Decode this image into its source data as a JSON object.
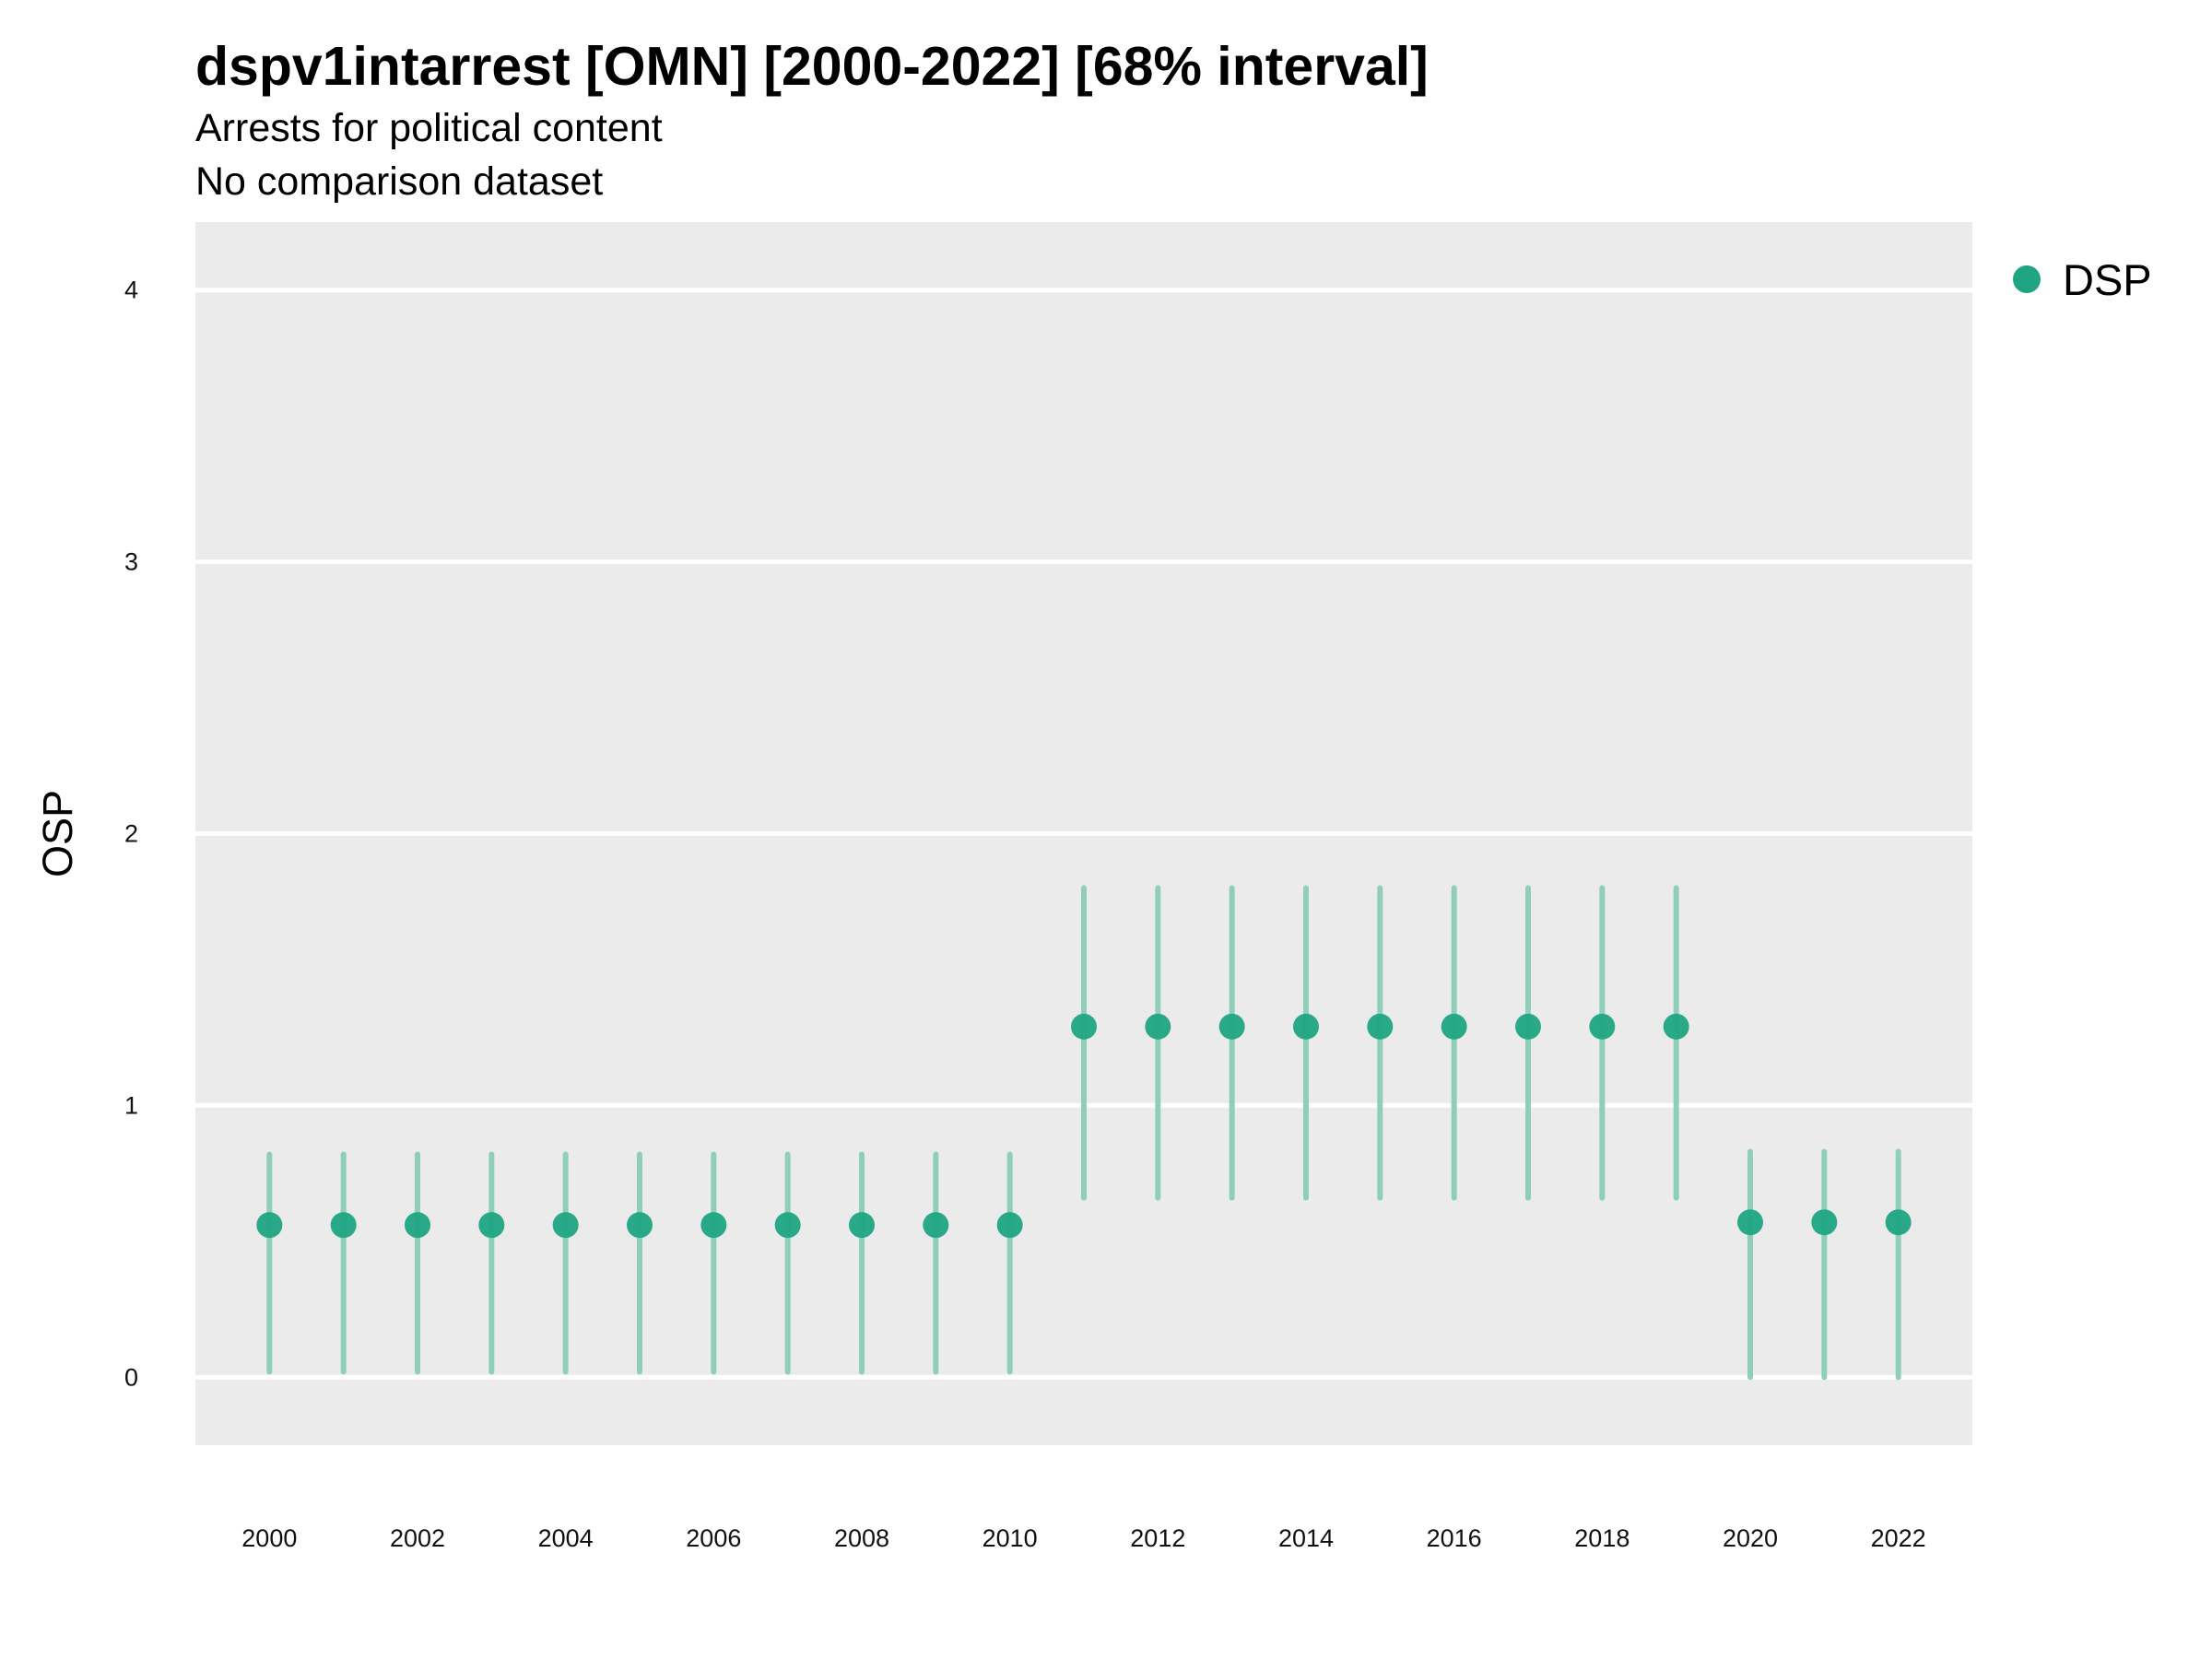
{
  "chart_data": {
    "type": "scatter",
    "title": "dspv1intarrest [OMN] [2000-2022] [68% interval]",
    "subtitle": "Arrests for political content",
    "subtitle2": "No comparison dataset",
    "ylabel": "OSP",
    "xlabel": "",
    "ylim": [
      -0.25,
      4.25
    ],
    "xlim": [
      1999,
      2023
    ],
    "yticks": [
      0,
      1,
      2,
      3,
      4
    ],
    "xticks": [
      2000,
      2002,
      2004,
      2006,
      2008,
      2010,
      2012,
      2014,
      2016,
      2018,
      2020,
      2022
    ],
    "grid": true,
    "legend_position": "right",
    "colors": {
      "point": "#1fa582",
      "interval": "#8fcfb9",
      "panel": "#ebebeb",
      "grid": "#ffffff"
    },
    "series": [
      {
        "name": "DSP",
        "x": [
          2000,
          2001,
          2002,
          2003,
          2004,
          2005,
          2006,
          2007,
          2008,
          2009,
          2010,
          2011,
          2012,
          2013,
          2014,
          2015,
          2016,
          2017,
          2018,
          2019,
          2020,
          2021,
          2022
        ],
        "y": [
          0.56,
          0.56,
          0.56,
          0.56,
          0.56,
          0.56,
          0.56,
          0.56,
          0.56,
          0.56,
          0.56,
          1.29,
          1.29,
          1.29,
          1.29,
          1.29,
          1.29,
          1.29,
          1.29,
          1.29,
          0.57,
          0.57,
          0.57
        ],
        "lower": [
          0.02,
          0.02,
          0.02,
          0.02,
          0.02,
          0.02,
          0.02,
          0.02,
          0.02,
          0.02,
          0.02,
          0.66,
          0.66,
          0.66,
          0.66,
          0.66,
          0.66,
          0.66,
          0.66,
          0.66,
          0.0,
          0.0,
          0.0
        ],
        "upper": [
          0.82,
          0.82,
          0.82,
          0.82,
          0.82,
          0.82,
          0.82,
          0.82,
          0.82,
          0.82,
          0.82,
          1.8,
          1.8,
          1.8,
          1.8,
          1.8,
          1.8,
          1.8,
          1.8,
          1.8,
          0.83,
          0.83,
          0.83
        ]
      }
    ]
  }
}
